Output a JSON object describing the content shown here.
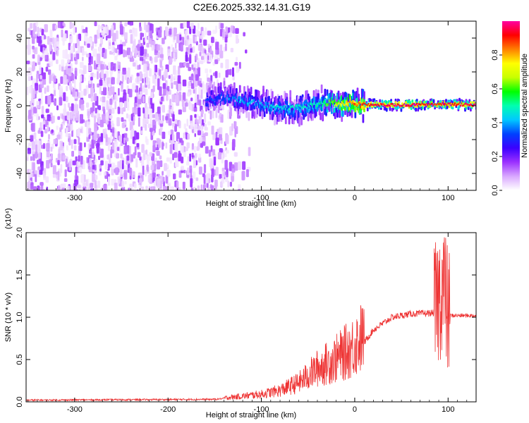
{
  "title": "C2E6.2025.332.14.31.G19",
  "chart_data": [
    {
      "type": "heatmap",
      "name": "spectrogram",
      "xlabel": "Height of straight line (km)",
      "ylabel": "Frequency (Hz)",
      "xlim": [
        -352,
        130
      ],
      "ylim": [
        -50,
        50
      ],
      "x_ticks": [
        -300,
        -200,
        -100,
        0,
        100
      ],
      "y_ticks": [
        -40,
        -20,
        0,
        20,
        40
      ],
      "colorbar": {
        "label": "Normalized spectral amplitude",
        "range": [
          0,
          1
        ],
        "ticks": [
          "0.0",
          "0.2",
          "0.4",
          "0.6",
          "0.8"
        ],
        "colors": [
          "#ffffff",
          "#d9a8ff",
          "#9b30ff",
          "#3b00ff",
          "#0040ff",
          "#00c8ff",
          "#00ffb0",
          "#00ff00",
          "#c8ff00",
          "#ffff00",
          "#ff8000",
          "#ff0000",
          "#ff00a0"
        ]
      },
      "noise_region": {
        "x_range": [
          -352,
          -130
        ],
        "density": "high"
      },
      "signal_track": [
        {
          "x": -160,
          "y": 3,
          "amp": 0.3
        },
        {
          "x": -140,
          "y": 5,
          "amp": 0.35
        },
        {
          "x": -120,
          "y": 3,
          "amp": 0.4
        },
        {
          "x": -100,
          "y": 1,
          "amp": 0.4
        },
        {
          "x": -80,
          "y": -2,
          "amp": 0.45
        },
        {
          "x": -60,
          "y": -1,
          "amp": 0.45
        },
        {
          "x": -40,
          "y": 1,
          "amp": 0.5
        },
        {
          "x": -30,
          "y": 2,
          "amp": 0.6
        },
        {
          "x": -20,
          "y": 1,
          "amp": 0.7
        },
        {
          "x": 0,
          "y": 1,
          "amp": 0.85
        },
        {
          "x": 20,
          "y": 0.5,
          "amp": 0.95
        },
        {
          "x": 60,
          "y": 0.5,
          "amp": 0.95
        },
        {
          "x": 90,
          "y": 1,
          "amp": 0.9
        },
        {
          "x": 130,
          "y": 0.5,
          "amp": 0.95
        }
      ]
    },
    {
      "type": "line",
      "name": "snr",
      "xlabel": "Height of straight line (km)",
      "ylabel": "SNR (10 * v/v)",
      "y_multiplier": "(x10⁴)",
      "xlim": [
        -352,
        130
      ],
      "ylim": [
        0.0,
        2.0
      ],
      "x_ticks": [
        -300,
        -200,
        -100,
        0,
        100
      ],
      "y_ticks": [
        "0.0",
        "0.5",
        "1.0",
        "1.5",
        "2.0"
      ],
      "color": "#ee3333",
      "profile": [
        {
          "x": -352,
          "y": 0.02
        },
        {
          "x": -150,
          "y": 0.03
        },
        {
          "x": -120,
          "y": 0.06
        },
        {
          "x": -100,
          "y": 0.08
        },
        {
          "x": -80,
          "y": 0.12
        },
        {
          "x": -60,
          "y": 0.2
        },
        {
          "x": -40,
          "y": 0.35
        },
        {
          "x": -20,
          "y": 0.45
        },
        {
          "x": -5,
          "y": 0.55
        },
        {
          "x": 10,
          "y": 0.7
        },
        {
          "x": 20,
          "y": 0.85
        },
        {
          "x": 40,
          "y": 1.0
        },
        {
          "x": 60,
          "y": 1.04
        },
        {
          "x": 85,
          "y": 1.05
        },
        {
          "x": 95,
          "y": 1.4
        },
        {
          "x": 100,
          "y": 1.02
        },
        {
          "x": 130,
          "y": 1.02
        }
      ]
    }
  ]
}
